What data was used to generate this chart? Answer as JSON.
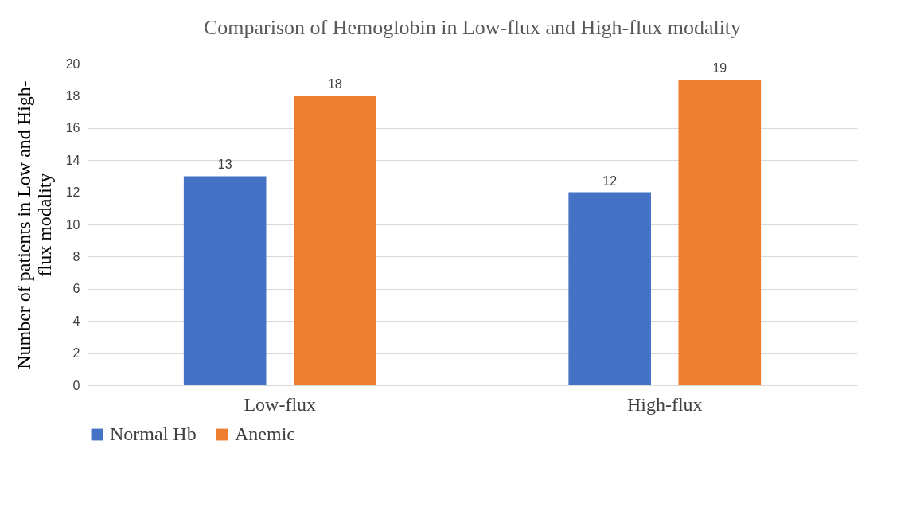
{
  "chart_data": {
    "type": "bar",
    "title": "Comparison of Hemoglobin in Low-flux and High-flux modality",
    "ylabel": "Number of patients in Low and High-flux modality",
    "categories": [
      "Low-flux",
      "High-flux"
    ],
    "series": [
      {
        "name": "Normal Hb",
        "color": "#4472c4",
        "values": [
          13,
          12
        ]
      },
      {
        "name": "Anemic",
        "color": "#ed7d31",
        "values": [
          18,
          19
        ]
      }
    ],
    "ylim": [
      0,
      20
    ],
    "yticks": [
      0,
      2,
      4,
      6,
      8,
      10,
      12,
      14,
      16,
      18,
      20
    ],
    "grid": "y",
    "legend": "bottom",
    "data_labels": true
  }
}
